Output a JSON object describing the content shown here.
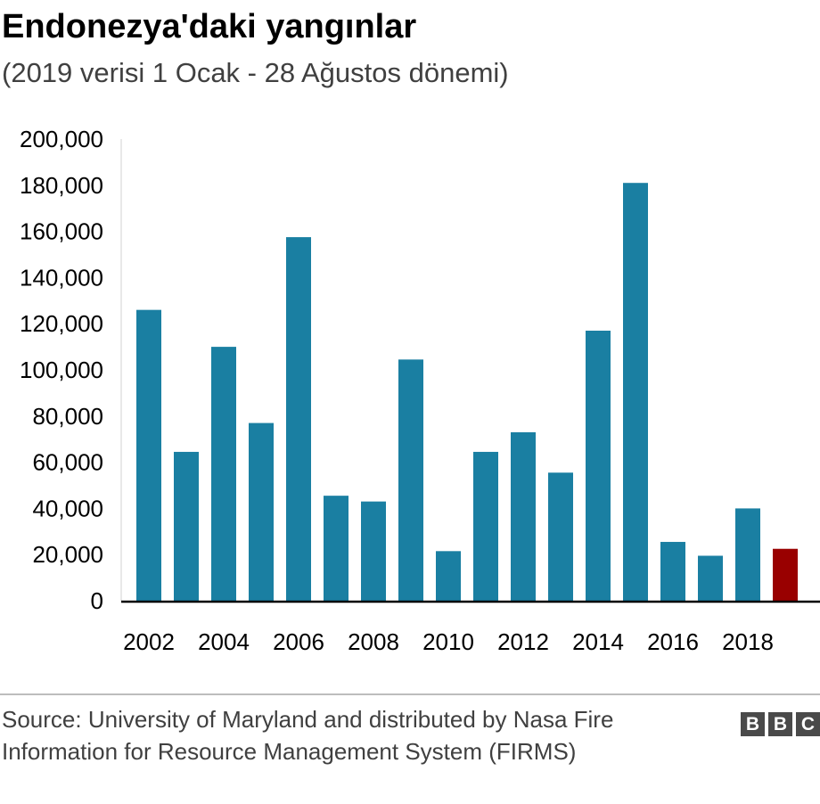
{
  "title": "Endonezya'daki yangınlar",
  "subtitle": "(2019 verisi 1 Ocak - 28 Ağustos dönemi)",
  "source": "Source: University of Maryland and distributed by Nasa Fire Information for Resource Management System (FIRMS)",
  "logo": [
    "B",
    "B",
    "C"
  ],
  "colors": {
    "bar": "#1a7fa2",
    "highlight": "#990000",
    "axis": "#000000",
    "text": "#000000"
  },
  "chart_data": {
    "type": "bar",
    "title": "Endonezya'daki yangınlar",
    "subtitle": "(2019 verisi 1 Ocak - 28 Ağustos dönemi)",
    "categories": [
      "2002",
      "2003",
      "2004",
      "2005",
      "2006",
      "2007",
      "2008",
      "2009",
      "2010",
      "2011",
      "2012",
      "2013",
      "2014",
      "2015",
      "2016",
      "2017",
      "2018",
      "2019"
    ],
    "values": [
      126000,
      64500,
      110000,
      77000,
      157500,
      45500,
      43000,
      104500,
      21500,
      64500,
      73000,
      55500,
      117000,
      181000,
      25500,
      19500,
      40000,
      22500
    ],
    "highlight_category": "2019",
    "x_tick_labels": [
      "2002",
      "2004",
      "2006",
      "2008",
      "2010",
      "2012",
      "2014",
      "2016",
      "2018"
    ],
    "y_tick_labels": [
      "0",
      "20,000",
      "40,000",
      "60,000",
      "80,000",
      "100,000",
      "120,000",
      "140,000",
      "160,000",
      "180,000",
      "200,000"
    ],
    "ylim": [
      0,
      200000
    ],
    "xlabel": "",
    "ylabel": "",
    "grid": false,
    "legend": "none"
  }
}
